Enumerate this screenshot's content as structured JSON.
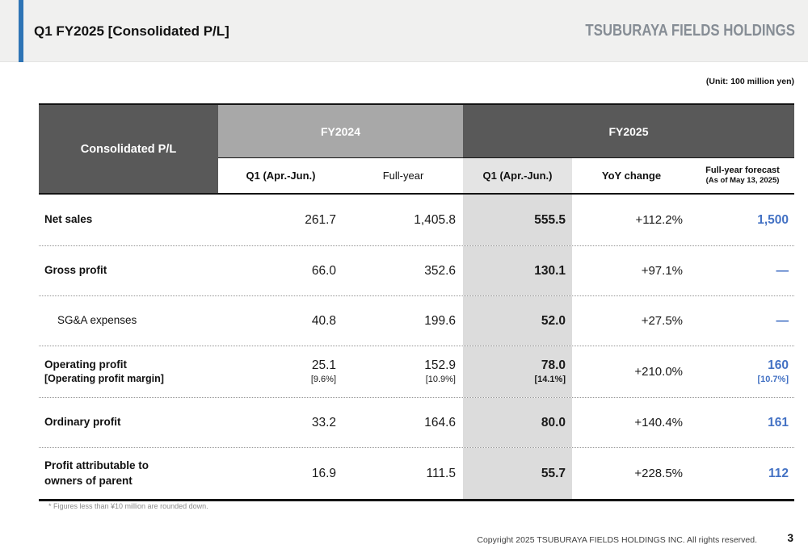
{
  "header": {
    "title": "Q1 FY2025 [Consolidated P/L]",
    "logo": "TSUBURAYA FIELDS HOLDINGS"
  },
  "unit_note": "(Unit: 100 million yen)",
  "table": {
    "corner_label": "Consolidated P/L",
    "group_fy24": "FY2024",
    "group_fy25": "FY2025",
    "columns": {
      "fy24_q1": "Q1 (Apr.-Jun.)",
      "fy24_full": "Full-year",
      "fy25_q1": "Q1 (Apr.-Jun.)",
      "yoy": "YoY change",
      "forecast_line1": "Full-year forecast",
      "forecast_line2": "(As of May 13, 2025)"
    },
    "rows": [
      {
        "label": "Net sales",
        "fy24_q1": "261.7",
        "fy24_full": "1,405.8",
        "fy25_q1": "555.5",
        "yoy": "+112.2%",
        "forecast": "1,500"
      },
      {
        "label": "Gross profit",
        "fy24_q1": "66.0",
        "fy24_full": "352.6",
        "fy25_q1": "130.1",
        "yoy": "+97.1%",
        "forecast": "—"
      },
      {
        "label": "SG&A expenses",
        "fy24_q1": "40.8",
        "fy24_full": "199.6",
        "fy25_q1": "52.0",
        "yoy": "+27.5%",
        "forecast": "—"
      },
      {
        "label": "Operating profit",
        "label_sub": "[Operating profit margin]",
        "fy24_q1": "25.1",
        "fy24_q1_sub": "[9.6%]",
        "fy24_full": "152.9",
        "fy24_full_sub": "[10.9%]",
        "fy25_q1": "78.0",
        "fy25_q1_sub": "[14.1%]",
        "yoy": "+210.0%",
        "forecast": "160",
        "forecast_sub": "[10.7%]"
      },
      {
        "label": "Ordinary profit",
        "fy24_q1": "33.2",
        "fy24_full": "164.6",
        "fy25_q1": "80.0",
        "yoy": "+140.4%",
        "forecast": "161"
      },
      {
        "label_line1": "Profit attributable to",
        "label_line2": "owners of parent",
        "fy24_q1": "16.9",
        "fy24_full": "111.5",
        "fy25_q1": "55.7",
        "yoy": "+228.5%",
        "forecast": "112"
      }
    ]
  },
  "footnote": "* Figures less than ¥10 million are rounded down.",
  "footer": {
    "copyright": "Copyright 2025 TSUBURAYA FIELDS HOLDINGS INC. All rights reserved.",
    "page_number": "3"
  },
  "colors": {
    "accent_blue": "#2E74B5",
    "forecast_blue": "#4472C4",
    "header_dark": "#595959",
    "header_medium": "#A8A8A8",
    "highlight": "#DCDCDC"
  }
}
